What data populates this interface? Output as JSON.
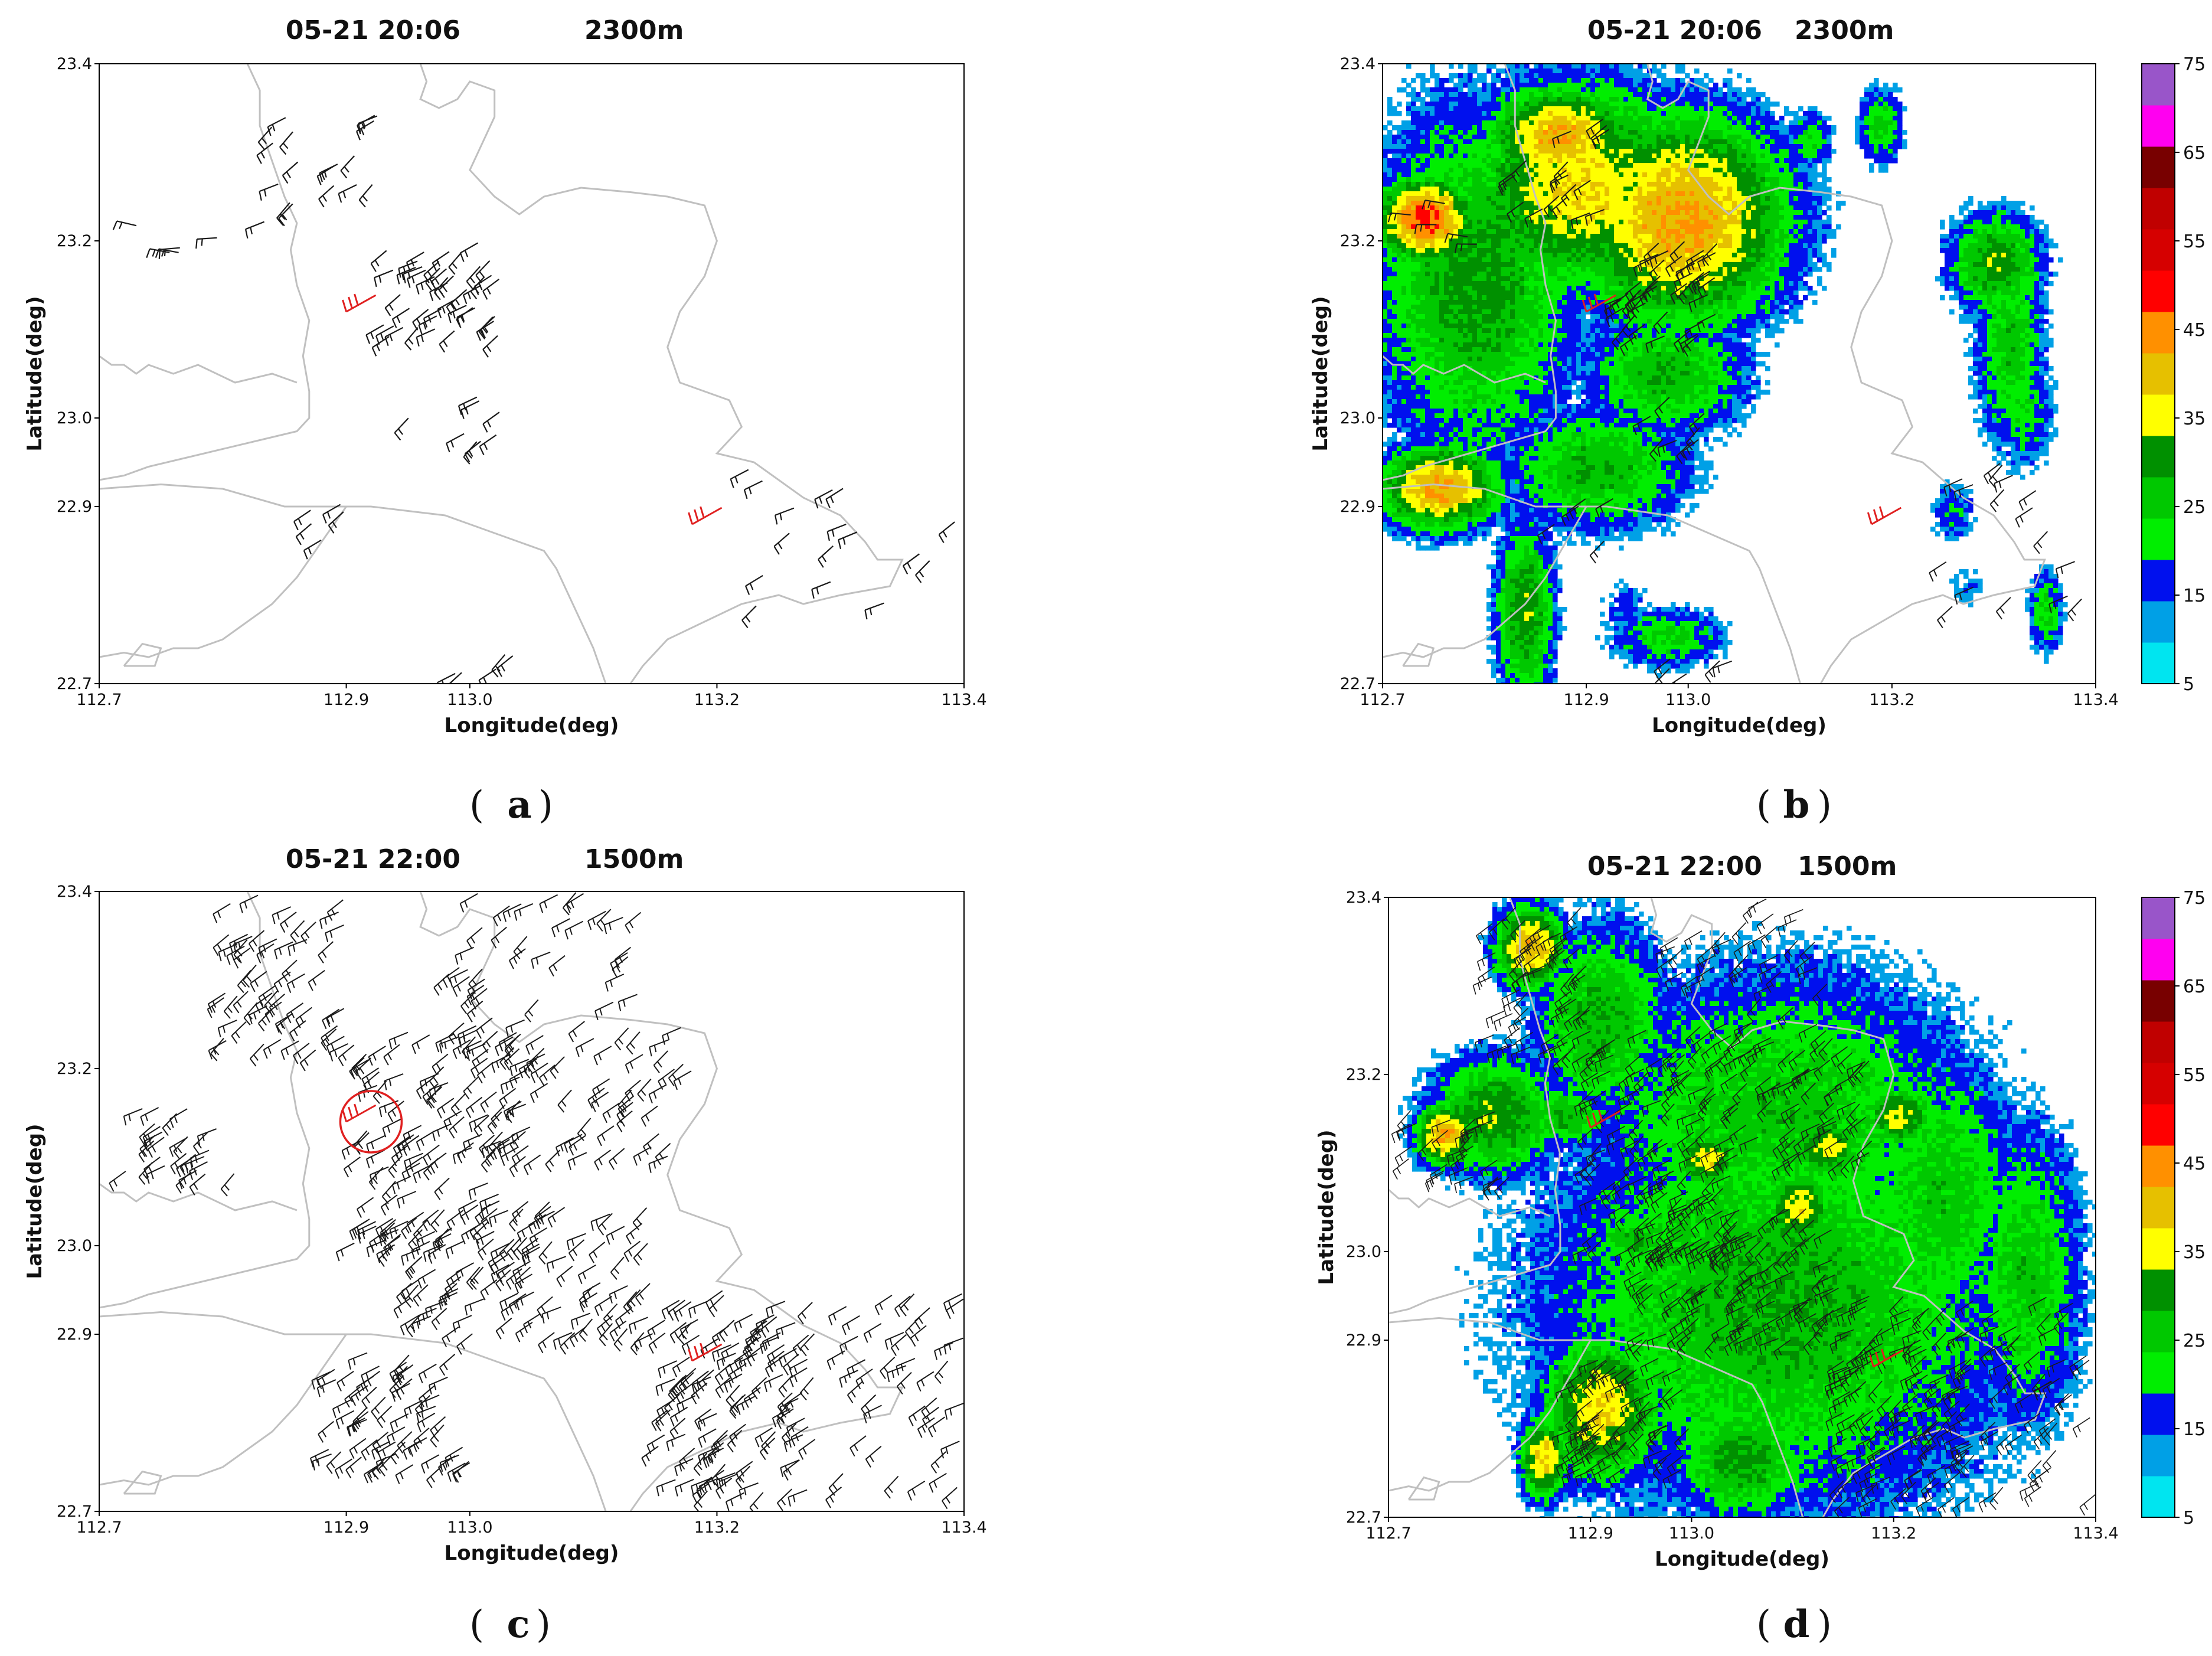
{
  "figure": {
    "panels": [
      {
        "id": "a",
        "label": "a",
        "title_time": "05-21 20:06",
        "title_height": "2300m",
        "has_reflectivity": false
      },
      {
        "id": "b",
        "label": "b",
        "title_time": "05-21 20:06",
        "title_height": "2300m",
        "has_reflectivity": true
      },
      {
        "id": "c",
        "label": "c",
        "title_time": "05-21 22:00",
        "title_height": "1500m",
        "has_reflectivity": false
      },
      {
        "id": "d",
        "label": "d",
        "title_time": "05-21 22:00",
        "title_height": "1500m",
        "has_reflectivity": true
      }
    ]
  },
  "chart_data": [
    {
      "panel": "a",
      "type": "scatter",
      "subtype": "wind-barb map",
      "title": "05-21 20:06    2300m",
      "xlabel": "Longitude(deg)",
      "ylabel": "Latitude(deg)",
      "xlim": [
        112.7,
        113.4
      ],
      "ylim": [
        22.7,
        23.4
      ],
      "xticks": [
        "112.7",
        "112.9",
        "113.0",
        "113.2",
        "113.4"
      ],
      "yticks": [
        "22.7",
        "22.9",
        "23.0",
        "23.2",
        "23.4"
      ],
      "barb_clusters": [
        {
          "lon": [
            112.83,
            112.93
          ],
          "lat": [
            23.22,
            23.35
          ],
          "dir": "SW",
          "count": 18
        },
        {
          "lon": [
            112.72,
            112.8
          ],
          "lat": [
            23.18,
            23.25
          ],
          "dir": "W",
          "count": 5
        },
        {
          "lon": [
            112.93,
            113.03
          ],
          "lat": [
            23.09,
            23.2
          ],
          "dir": "SW",
          "count": 45
        },
        {
          "lon": [
            112.95,
            113.03
          ],
          "lat": [
            22.97,
            23.03
          ],
          "dir": "SW",
          "count": 8
        },
        {
          "lon": [
            112.86,
            112.93
          ],
          "lat": [
            22.86,
            22.91
          ],
          "dir": "SW",
          "count": 5
        },
        {
          "lon": [
            113.22,
            113.4
          ],
          "lat": [
            22.78,
            22.95
          ],
          "dir": "SW",
          "count": 16
        },
        {
          "lon": [
            112.98,
            113.05
          ],
          "lat": [
            22.71,
            22.74
          ],
          "dir": "SW",
          "count": 5
        }
      ],
      "highlight_barbs": [
        {
          "lon": 112.9,
          "lat": 23.12,
          "color": "#e02020"
        },
        {
          "lon": 113.18,
          "lat": 22.88,
          "color": "#e02020"
        }
      ]
    },
    {
      "panel": "b",
      "type": "heatmap",
      "subtype": "reflectivity with wind barbs",
      "title": "05-21 20:06    2300m",
      "xlabel": "Longitude(deg)",
      "ylabel": "Latitude(deg)",
      "xlim": [
        112.7,
        113.4
      ],
      "ylim": [
        22.7,
        23.4
      ],
      "colorbar_ticks": [
        "5",
        "15",
        "25",
        "35",
        "45",
        "55",
        "65",
        "75"
      ],
      "colorbar_range": [
        5,
        75
      ]
    },
    {
      "panel": "c",
      "type": "scatter",
      "subtype": "wind-barb map",
      "title": "05-21 22:00    1500m",
      "xlabel": "Longitude(deg)",
      "ylabel": "Latitude(deg)",
      "xlim": [
        112.7,
        113.4
      ],
      "ylim": [
        22.7,
        23.4
      ],
      "barb_clusters": [
        {
          "lon": [
            112.8,
            112.9
          ],
          "lat": [
            23.22,
            23.4
          ],
          "dir": "SW",
          "count": 60
        },
        {
          "lon": [
            112.72,
            112.82
          ],
          "lat": [
            23.08,
            23.16
          ],
          "dir": "SW",
          "count": 28
        },
        {
          "lon": [
            112.9,
            113.05
          ],
          "lat": [
            23.0,
            23.25
          ],
          "dir": "SW",
          "count": 120
        },
        {
          "lon": [
            113.02,
            113.18
          ],
          "lat": [
            23.1,
            23.25
          ],
          "dir": "SW",
          "count": 60
        },
        {
          "lon": [
            112.98,
            113.14
          ],
          "lat": [
            23.22,
            23.4
          ],
          "dir": "SW",
          "count": 50
        },
        {
          "lon": [
            112.95,
            113.15
          ],
          "lat": [
            22.9,
            23.05
          ],
          "dir": "SW",
          "count": 110
        },
        {
          "lon": [
            112.88,
            113.0
          ],
          "lat": [
            22.75,
            22.88
          ],
          "dir": "SW",
          "count": 70
        },
        {
          "lon": [
            113.15,
            113.28
          ],
          "lat": [
            22.72,
            22.95
          ],
          "dir": "SW",
          "count": 130
        },
        {
          "lon": [
            113.3,
            113.4
          ],
          "lat": [
            22.72,
            22.95
          ],
          "dir": "SW",
          "count": 45
        }
      ],
      "highlight_barbs": [
        {
          "lon": 112.9,
          "lat": 23.14,
          "color": "#e02020"
        },
        {
          "lon": 113.18,
          "lat": 22.87,
          "color": "#e02020"
        }
      ],
      "circle": {
        "lon": 112.92,
        "lat": 23.14,
        "color": "#e02020"
      }
    },
    {
      "panel": "d",
      "type": "heatmap",
      "subtype": "reflectivity with wind barbs",
      "title": "05-21 22:00    1500m",
      "xlabel": "Longitude(deg)",
      "ylabel": "Latitude(deg)",
      "xlim": [
        112.7,
        113.4
      ],
      "ylim": [
        22.7,
        23.4
      ],
      "colorbar_ticks": [
        "5",
        "15",
        "25",
        "35",
        "45",
        "55",
        "65",
        "75"
      ],
      "colorbar_range": [
        5,
        75
      ]
    }
  ],
  "colorbar_colors": [
    "#00e5f0",
    "#00a0e6",
    "#0010ee",
    "#00ee00",
    "#00c800",
    "#009000",
    "#ffff00",
    "#e6c000",
    "#ff9000",
    "#ff0000",
    "#d60000",
    "#c00000",
    "#780000",
    "#ff00f0",
    "#9955c9"
  ],
  "colors": {
    "coast": "#c0c0c0",
    "barb": "#1a1a1a",
    "highlight": "#e02020"
  },
  "axis": {
    "xlabel": "Longitude(deg)",
    "ylabel": "Latitude(deg)",
    "xticks": [
      "112.7",
      "112.9",
      "113.0",
      "113.2",
      "113.4"
    ],
    "yticks": [
      "22.7",
      "22.9",
      "23.0",
      "23.2",
      "23.4"
    ]
  }
}
